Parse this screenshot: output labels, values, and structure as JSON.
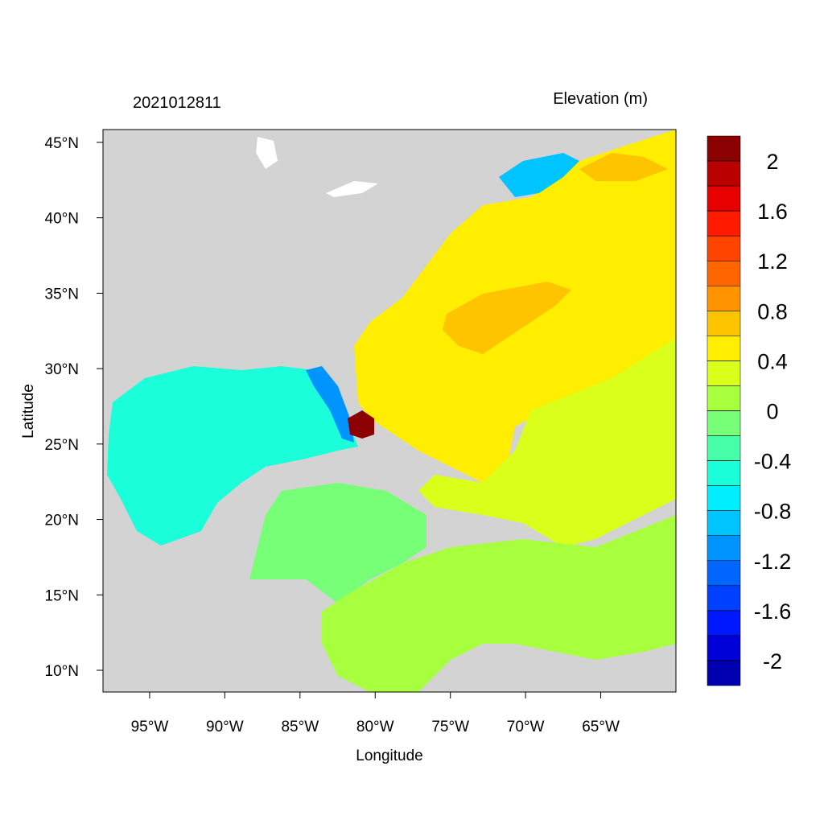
{
  "header": {
    "date": "2021012811",
    "variable": "Elevation (m)"
  },
  "map": {
    "xlabel": "Longitude",
    "ylabel": "Latitude",
    "xlim": [
      -98.1,
      -60
    ],
    "ylim": [
      8.56,
      45.85
    ],
    "xticks": [
      {
        "value": -95,
        "label": "95°W"
      },
      {
        "value": -90,
        "label": "90°W"
      },
      {
        "value": -85,
        "label": "85°W"
      },
      {
        "value": -80,
        "label": "80°W"
      },
      {
        "value": -75,
        "label": "75°W"
      },
      {
        "value": -70,
        "label": "70°W"
      },
      {
        "value": -65,
        "label": "65°W"
      }
    ],
    "yticks": [
      {
        "value": 10,
        "label": "10°N"
      },
      {
        "value": 15,
        "label": "15°N"
      },
      {
        "value": 20,
        "label": "20°N"
      },
      {
        "value": 25,
        "label": "25°N"
      },
      {
        "value": 30,
        "label": "30°N"
      },
      {
        "value": 35,
        "label": "35°N"
      },
      {
        "value": 40,
        "label": "40°N"
      },
      {
        "value": 45,
        "label": "45°N"
      }
    ]
  },
  "colorbar": {
    "range": [
      -2.2,
      2.2
    ],
    "ticks": [
      2,
      1.6,
      1.2,
      0.8,
      0.4,
      0,
      -0.4,
      -0.8,
      -1.2,
      -1.6,
      -2
    ],
    "colors": [
      "#8b0000",
      "#bb0000",
      "#e60000",
      "#ff1a00",
      "#ff4400",
      "#ff6600",
      "#ff9400",
      "#ffc400",
      "#ffee00",
      "#d9ff1a",
      "#a8ff3e",
      "#78ff78",
      "#46ffa8",
      "#1affd9",
      "#00eeff",
      "#00c4ff",
      "#0094ff",
      "#0066ff",
      "#0040ff",
      "#0018ff",
      "#0000d9",
      "#0000b0"
    ]
  }
}
